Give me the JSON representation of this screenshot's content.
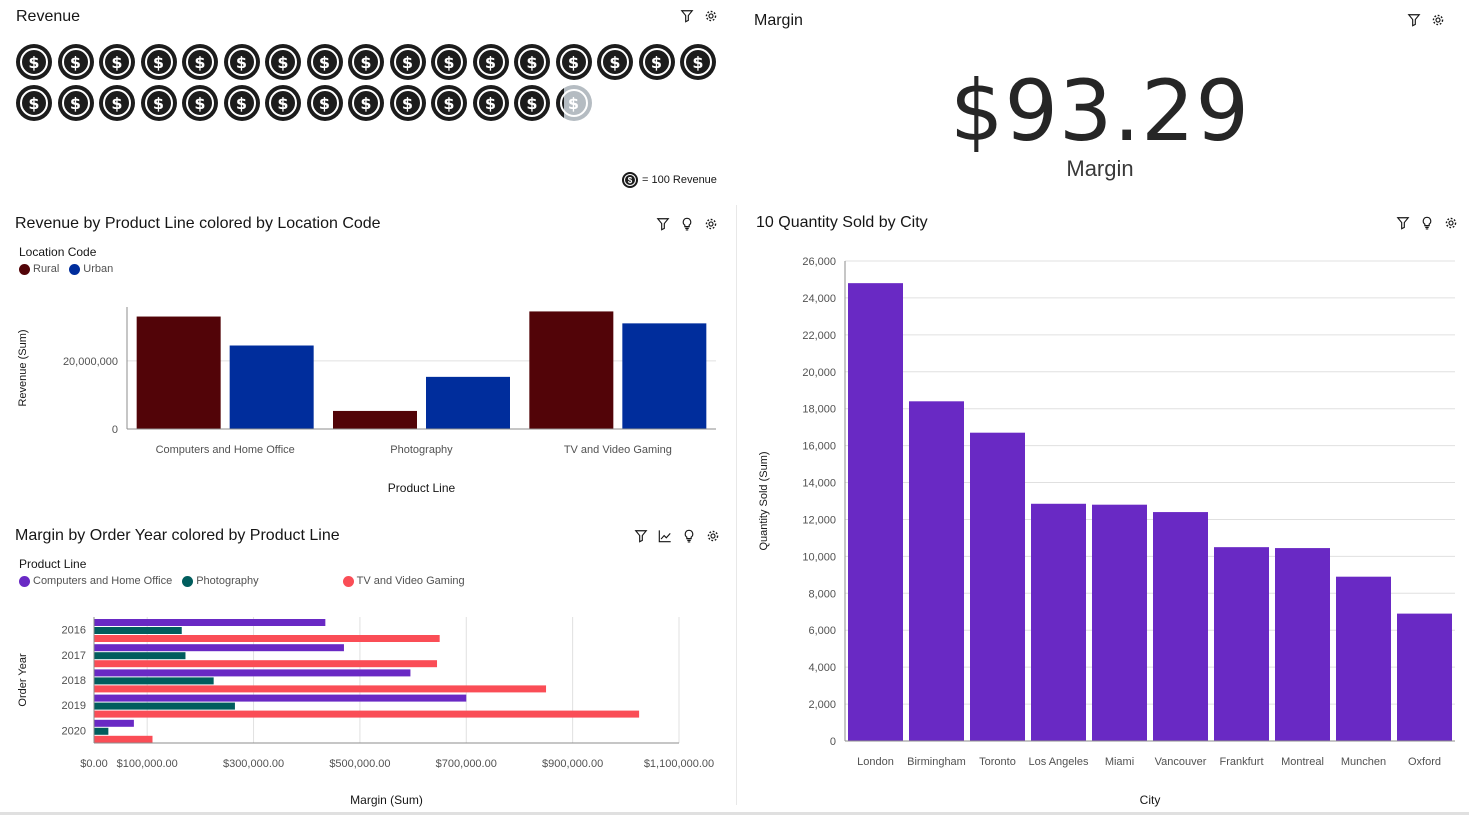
{
  "revenue_tile": {
    "title": "Revenue",
    "full_coins": 30,
    "partial_coin_fraction": 0.2,
    "coins_per_row": 17,
    "coin_glyph": "$",
    "unit_legend": "= 100 Revenue"
  },
  "margin_tile": {
    "title": "Margin",
    "value": "$93.29",
    "label": "Margin"
  },
  "tools": {
    "filter_icon": "filter-icon",
    "insight_icon": "lightbulb-icon",
    "settings_icon": "settings-icon",
    "trend_icon": "trend-icon"
  },
  "colors": {
    "rural": "#520408",
    "urban": "#002d9c",
    "computers": "#6929c4",
    "photography": "#005d5d",
    "tv": "#fa4d56",
    "city_bar": "#6929c4",
    "grid": "#e0e0e0",
    "axis": "#8d8d8d"
  },
  "chart_data": [
    {
      "id": "revenue_by_product_line",
      "type": "bar",
      "title": "Revenue by Product Line colored by Location Code",
      "legend_title": "Location Code",
      "categories": [
        "Computers and Home Office",
        "Photography",
        "TV and Video Gaming"
      ],
      "series": [
        {
          "name": "Rural",
          "values": [
            33000000,
            5300000,
            34500000
          ]
        },
        {
          "name": "Urban",
          "values": [
            24500000,
            15300000,
            31000000
          ]
        }
      ],
      "xlabel": "Product Line",
      "ylabel": "Revenue (Sum)",
      "yticks": [
        0,
        20000000
      ],
      "ytick_labels": [
        "0",
        "20,000,000"
      ],
      "ylim": [
        0,
        35800000
      ],
      "grid": true
    },
    {
      "id": "margin_by_order_year",
      "type": "bar",
      "orientation": "horizontal",
      "title": "Margin by Order Year colored by Product Line",
      "legend_title": "Product Line",
      "categories": [
        "2016",
        "2017",
        "2018",
        "2019",
        "2020"
      ],
      "series": [
        {
          "name": "Computers and Home Office",
          "values": [
            435000,
            470000,
            595000,
            700000,
            75000
          ]
        },
        {
          "name": "Photography",
          "values": [
            165000,
            172000,
            225000,
            265000,
            27000
          ]
        },
        {
          "name": "TV and Video Gaming",
          "values": [
            650000,
            645000,
            850000,
            1025000,
            110000
          ]
        }
      ],
      "xlabel": "Margin (Sum)",
      "ylabel": "Order Year",
      "xticks": [
        0,
        100000,
        300000,
        500000,
        700000,
        900000,
        1100000
      ],
      "xtick_labels": [
        "$0.00",
        "$100,000.00",
        "$300,000.00",
        "$500,000.00",
        "$700,000.00",
        "$900,000.00",
        "$1,100,000.00"
      ],
      "xlim": [
        0,
        1100000
      ],
      "grid": true
    },
    {
      "id": "quantity_sold_by_city",
      "type": "bar",
      "title": "10 Quantity Sold by City",
      "categories": [
        "London",
        "Birmingham",
        "Toronto",
        "Los Angeles",
        "Miami",
        "Vancouver",
        "Frankfurt",
        "Montreal",
        "Munchen",
        "Oxford"
      ],
      "values": [
        24800,
        18400,
        16700,
        12850,
        12800,
        12400,
        10500,
        10450,
        8900,
        6900
      ],
      "xlabel": "City",
      "ylabel": "Quantity Sold (Sum)",
      "yticks": [
        0,
        2000,
        4000,
        6000,
        8000,
        10000,
        12000,
        14000,
        16000,
        18000,
        20000,
        22000,
        24000,
        26000
      ],
      "ytick_labels": [
        "0",
        "2,000",
        "4,000",
        "6,000",
        "8,000",
        "10,000",
        "12,000",
        "14,000",
        "16,000",
        "18,000",
        "20,000",
        "22,000",
        "24,000",
        "26,000"
      ],
      "ylim": [
        0,
        26000
      ],
      "grid": true
    }
  ]
}
